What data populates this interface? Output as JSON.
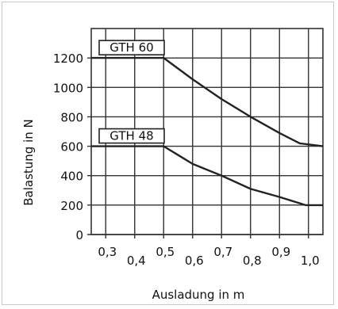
{
  "chart_data": {
    "type": "line",
    "xlabel": "Ausladung in m",
    "ylabel": "Balastung in N",
    "xlim": [
      0.25,
      1.05
    ],
    "ylim": [
      0,
      1400
    ],
    "x_ticks": [
      0.3,
      0.4,
      0.5,
      0.6,
      0.7,
      0.8,
      0.9,
      1.0
    ],
    "x_tick_labels": [
      "0,3",
      "0,4",
      "0,5",
      "0,6",
      "0,7",
      "0,8",
      "0,9",
      "1,0"
    ],
    "y_ticks": [
      0,
      200,
      400,
      600,
      800,
      1000,
      1200
    ],
    "y_tick_labels": [
      "0",
      "200",
      "400",
      "600",
      "800",
      "1000",
      "1200"
    ],
    "grid": true,
    "series": [
      {
        "name": "GTH 60",
        "points": [
          [
            0.25,
            1200
          ],
          [
            0.5,
            1200
          ],
          [
            0.6,
            1055
          ],
          [
            0.7,
            920
          ],
          [
            0.8,
            800
          ],
          [
            0.9,
            690
          ],
          [
            0.97,
            620
          ],
          [
            1.05,
            600
          ]
        ]
      },
      {
        "name": "GTH 48",
        "points": [
          [
            0.25,
            600
          ],
          [
            0.5,
            600
          ],
          [
            0.55,
            540
          ],
          [
            0.6,
            480
          ],
          [
            0.7,
            400
          ],
          [
            0.8,
            310
          ],
          [
            0.9,
            255
          ],
          [
            0.99,
            200
          ],
          [
            1.05,
            200
          ]
        ]
      }
    ],
    "colors": {
      "line": "#222222",
      "grid": "#333333",
      "text": "#111111"
    }
  }
}
